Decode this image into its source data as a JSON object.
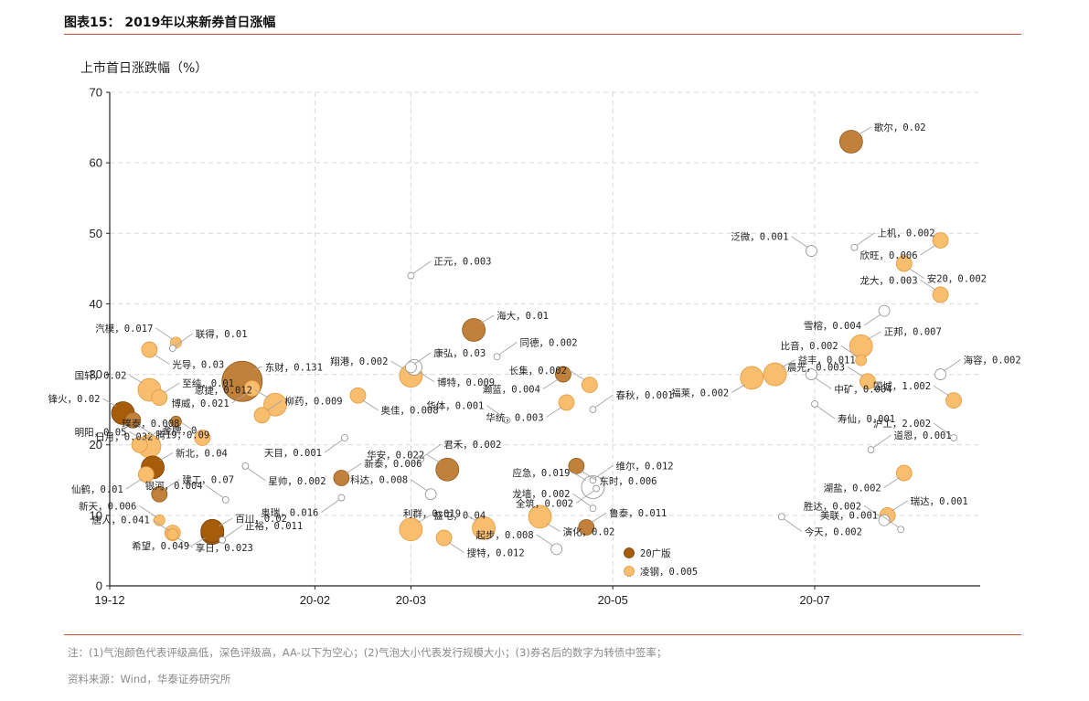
{
  "figure": {
    "title": "图表15：  2019年以来新券首日涨幅",
    "note": "注：(1)气泡颜色代表评级高低，深色评级高，AA-以下为空心；(2)气泡大小代表发行规模大小；(3)券名后的数字为转债中签率；",
    "source": "资料来源：Wind，华泰证券研究所"
  },
  "colors": {
    "light": "#f9bd6e",
    "mid": "#c2813a",
    "dark": "#a65c0a",
    "hollow": "#ffffff",
    "rule": "#c8503c"
  },
  "chart_data": {
    "type": "scatter",
    "ylabel": "上市首日涨跌幅（%）",
    "xlabel": "",
    "ylim": [
      0,
      70
    ],
    "yticks": [
      "0",
      "10",
      "20",
      "30",
      "40",
      "50",
      "60",
      "70"
    ],
    "xticks": [
      {
        "label": "19-12",
        "x": "2019-12-01"
      },
      {
        "label": "20-02",
        "x": "2020-02-01"
      },
      {
        "label": "20-03",
        "x": "2020-03-01"
      },
      {
        "label": "20-05",
        "x": "2020-05-01"
      },
      {
        "label": "20-07",
        "x": "2020-07-01"
      }
    ],
    "xrange": [
      "2019-12-01",
      "2020-08-20"
    ],
    "grid": true,
    "legend": {
      "position": "bottom-right",
      "entries": [
        {
          "label": "20广版",
          "color": "dark"
        },
        {
          "label": "凌钢，0.005",
          "color": "light"
        }
      ]
    },
    "points": [
      {
        "label": "歌尔，0.02",
        "x": "2020-07-12",
        "y": 63.0,
        "size": "large",
        "color": "mid"
      },
      {
        "label": "欣旺，0.006",
        "x": "2020-08-08",
        "y": 49.0,
        "size": "medium",
        "color": "light"
      },
      {
        "label": "上机，0.002",
        "x": "2020-07-13",
        "y": 48.0,
        "size": "tiny",
        "color": "hollow"
      },
      {
        "label": "泛微，0.001",
        "x": "2020-06-30",
        "y": 47.5,
        "size": "small",
        "color": "hollow"
      },
      {
        "label": "安20，0.002",
        "x": "2020-07-28",
        "y": 45.7,
        "size": "medium",
        "color": "light"
      },
      {
        "label": "龙大，0.003",
        "x": "2020-08-08",
        "y": 41.3,
        "size": "medium",
        "color": "light"
      },
      {
        "label": "正元，0.003",
        "x": "2020-03-01",
        "y": 44.0,
        "size": "tiny",
        "color": "hollow"
      },
      {
        "label": "雪榕，0.004",
        "x": "2020-07-22",
        "y": 39.0,
        "size": "small",
        "color": "hollow"
      },
      {
        "label": "正邦，0.007",
        "x": "2020-07-15",
        "y": 34.0,
        "size": "large",
        "color": "light"
      },
      {
        "label": "比音，0.002",
        "x": "2020-07-15",
        "y": 32.0,
        "size": "small",
        "color": "light"
      },
      {
        "label": "中矿，0.004",
        "x": "2020-06-30",
        "y": 30.0,
        "size": "small",
        "color": "hollow"
      },
      {
        "label": "晨光，0.003",
        "x": "2020-07-17",
        "y": 29.0,
        "size": "medium",
        "color": "light"
      },
      {
        "label": "海容，0.002",
        "x": "2020-08-08",
        "y": 30.0,
        "size": "small",
        "color": "hollow"
      },
      {
        "label": "福莱，0.002",
        "x": "2020-06-12",
        "y": 29.5,
        "size": "large",
        "color": "light"
      },
      {
        "label": "益丰，0.011",
        "x": "2020-06-19",
        "y": 30.0,
        "size": "large",
        "color": "light"
      },
      {
        "label": "国城，1.002",
        "x": "2020-08-12",
        "y": 26.3,
        "size": "medium",
        "color": "light"
      },
      {
        "label": "寿仙，0.001",
        "x": "2020-07-01",
        "y": 25.8,
        "size": "tiny",
        "color": "hollow"
      },
      {
        "label": "沪工，2.002",
        "x": "2020-08-12",
        "y": 21.0,
        "size": "tiny",
        "color": "hollow"
      },
      {
        "label": "道恩，0.001",
        "x": "2020-07-18",
        "y": 19.3,
        "size": "tiny",
        "color": "hollow"
      },
      {
        "label": "湖盐，0.002",
        "x": "2020-07-28",
        "y": 16.0,
        "size": "medium",
        "color": "light"
      },
      {
        "label": "瑞达，0.001",
        "x": "2020-07-23",
        "y": 10.0,
        "size": "medium",
        "color": "light"
      },
      {
        "label": "胜达，0.002",
        "x": "2020-07-22",
        "y": 9.3,
        "size": "small",
        "color": "hollow"
      },
      {
        "label": "今天，0.002",
        "x": "2020-06-21",
        "y": 9.8,
        "size": "tiny",
        "color": "hollow"
      },
      {
        "label": "美联，0.001",
        "x": "2020-07-27",
        "y": 8.0,
        "size": "tiny",
        "color": "hollow"
      },
      {
        "label": "海大，0.01",
        "x": "2020-03-20",
        "y": 36.3,
        "size": "large",
        "color": "mid"
      },
      {
        "label": "瀚蓝，0.004",
        "x": "2020-04-16",
        "y": 30.0,
        "size": "medium",
        "color": "mid"
      },
      {
        "label": "同德，0.002",
        "x": "2020-03-27",
        "y": 32.5,
        "size": "tiny",
        "color": "hollow"
      },
      {
        "label": "长集，0.002",
        "x": "2020-04-24",
        "y": 28.5,
        "size": "medium",
        "color": "light"
      },
      {
        "label": "博特，0.009",
        "x": "2020-03-02",
        "y": 31.0,
        "size": "medium",
        "color": "hollow"
      },
      {
        "label": "翔港，0.002",
        "x": "2020-03-01",
        "y": 29.8,
        "size": "large",
        "color": "light"
      },
      {
        "label": "康弘，0.03",
        "x": "2020-03-01",
        "y": 31.0,
        "size": "small",
        "color": "hollow"
      },
      {
        "label": "华统，0.003",
        "x": "2020-04-17",
        "y": 26.0,
        "size": "medium",
        "color": "light"
      },
      {
        "label": "春秋，0.001",
        "x": "2020-04-25",
        "y": 25.0,
        "size": "tiny",
        "color": "hollow"
      },
      {
        "label": "华体，0.001",
        "x": "2020-03-30",
        "y": 23.5,
        "size": "tiny",
        "color": "hollow"
      },
      {
        "label": "奥佳，0.008",
        "x": "2020-02-14",
        "y": 27.0,
        "size": "medium",
        "color": "light"
      },
      {
        "label": "恩捷，0.012",
        "x": "2020-01-20",
        "y": 25.7,
        "size": "large",
        "color": "light"
      },
      {
        "label": "柳药，0.009",
        "x": "2020-01-16",
        "y": 24.2,
        "size": "medium",
        "color": "light"
      },
      {
        "label": "天目，0.001",
        "x": "2020-02-10",
        "y": 21.0,
        "size": "tiny",
        "color": "hollow"
      },
      {
        "label": "君禾，0.002",
        "x": "2020-03-04",
        "y": 18.0,
        "size": "tiny",
        "color": "hollow"
      },
      {
        "label": "华安，0.022",
        "x": "2020-03-12",
        "y": 16.5,
        "size": "large",
        "color": "mid"
      },
      {
        "label": "东时，0.006",
        "x": "2020-04-20",
        "y": 17.0,
        "size": "medium",
        "color": "mid"
      },
      {
        "label": "应急，0.019",
        "x": "2020-04-25",
        "y": 14.0,
        "size": "large",
        "color": "hollow"
      },
      {
        "label": "维尔，0.012",
        "x": "2020-04-25",
        "y": 15.0,
        "size": "tiny",
        "color": "hollow"
      },
      {
        "label": "全筑，0.002",
        "x": "2020-04-26",
        "y": 13.8,
        "size": "tiny",
        "color": "hollow"
      },
      {
        "label": "新泰，0.006",
        "x": "2020-02-09",
        "y": 15.3,
        "size": "medium",
        "color": "mid"
      },
      {
        "label": "科达，0.008",
        "x": "2020-03-07",
        "y": 13.0,
        "size": "small",
        "color": "hollow"
      },
      {
        "label": "演化，0.02",
        "x": "2020-04-09",
        "y": 9.8,
        "size": "large",
        "color": "light"
      },
      {
        "label": "龙墙，0.002",
        "x": "2020-04-25",
        "y": 11.0,
        "size": "tiny",
        "color": "hollow"
      },
      {
        "label": "鲁泰，0.011",
        "x": "2020-04-23",
        "y": 8.3,
        "size": "medium",
        "color": "mid"
      },
      {
        "label": "奥瑞，0.016",
        "x": "2020-02-09",
        "y": 12.5,
        "size": "tiny",
        "color": "hollow"
      },
      {
        "label": "盛屯，0.04",
        "x": "2020-03-01",
        "y": 8.0,
        "size": "large",
        "color": "light"
      },
      {
        "label": "利群，0.019",
        "x": "2020-03-23",
        "y": 8.2,
        "size": "large",
        "color": "light"
      },
      {
        "label": "搜特，0.012",
        "x": "2020-03-11",
        "y": 6.8,
        "size": "medium",
        "color": "light"
      },
      {
        "label": "起步，0.008",
        "x": "2020-04-14",
        "y": 5.2,
        "size": "small",
        "color": "hollow"
      },
      {
        "label": "东财，0.131",
        "x": "2020-01-10",
        "y": 29.0,
        "size": "xlarge",
        "color": "mid"
      },
      {
        "label": "博威，0.021",
        "x": "2020-01-13",
        "y": 28.0,
        "size": "medium",
        "color": "light"
      },
      {
        "label": "联得，0.01",
        "x": "2019-12-20",
        "y": 33.7,
        "size": "tiny",
        "color": "hollow"
      },
      {
        "label": "汽模，0.017",
        "x": "2019-12-21",
        "y": 34.5,
        "size": "small",
        "color": "light"
      },
      {
        "label": "光导，0.03",
        "x": "2019-12-13",
        "y": 33.5,
        "size": "medium",
        "color": "light"
      },
      {
        "label": "国轩，0.02",
        "x": "2019-12-13",
        "y": 27.8,
        "size": "large",
        "color": "light"
      },
      {
        "label": "至纯，0.01",
        "x": "2019-12-16",
        "y": 26.7,
        "size": "medium",
        "color": "light"
      },
      {
        "label": "日月，0.032",
        "x": "2019-12-21",
        "y": 23.3,
        "size": "small",
        "color": "mid"
      },
      {
        "label": "金牌，0",
        "x": "2019-12-10",
        "y": 20.0,
        "size": "medium",
        "color": "light"
      },
      {
        "label": "锋火，0.02",
        "x": "2019-12-05",
        "y": 24.5,
        "size": "large",
        "color": "dark"
      },
      {
        "label": "腾19，0.09",
        "x": "2019-12-08",
        "y": 23.5,
        "size": "medium",
        "color": "mid"
      },
      {
        "label": "明阳，0.05",
        "x": "2019-12-13",
        "y": 19.8,
        "size": "large",
        "color": "light"
      },
      {
        "label": "新北，0.04",
        "x": "2019-12-14",
        "y": 16.8,
        "size": "large",
        "color": "dark"
      },
      {
        "label": "仙鹤，0.01",
        "x": "2019-12-12",
        "y": 15.8,
        "size": "medium",
        "color": "light"
      },
      {
        "label": "建工，0.07",
        "x": "2019-12-16",
        "y": 13.0,
        "size": "medium",
        "color": "mid"
      },
      {
        "label": "新天，0.006",
        "x": "2019-12-16",
        "y": 9.3,
        "size": "small",
        "color": "light"
      },
      {
        "label": "享日，0.023",
        "x": "2019-12-20",
        "y": 7.5,
        "size": "medium",
        "color": "light"
      },
      {
        "label": "唐人，0.041",
        "x": "2019-12-20",
        "y": 7.3,
        "size": "small",
        "color": "light"
      },
      {
        "label": "百川，0.02",
        "x": "2020-01-01",
        "y": 7.5,
        "size": "large",
        "color": "dark"
      },
      {
        "label": "希望，0.049",
        "x": "2020-01-01",
        "y": 7.8,
        "size": "large",
        "color": "dark"
      },
      {
        "label": "正裕，0.011",
        "x": "2020-01-04",
        "y": 6.5,
        "size": "tiny",
        "color": "hollow"
      },
      {
        "label": "璞泰，0.008",
        "x": "2019-12-29",
        "y": 21.0,
        "size": "medium",
        "color": "light"
      },
      {
        "label": "星帅，0.002",
        "x": "2020-01-11",
        "y": 17.0,
        "size": "tiny",
        "color": "hollow"
      },
      {
        "label": "银河，0.004",
        "x": "2020-01-05",
        "y": 12.2,
        "size": "tiny",
        "color": "hollow"
      }
    ]
  }
}
